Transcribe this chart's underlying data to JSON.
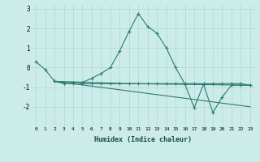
{
  "xlabel": "Humidex (Indice chaleur)",
  "bg_color": "#ccecea",
  "line_color": "#2a7d6e",
  "grid_color": "#b0d8d4",
  "xlim": [
    -0.5,
    23.5
  ],
  "ylim": [
    -3,
    3.2
  ],
  "yticks": [
    -2,
    -1,
    0,
    1,
    2,
    3
  ],
  "xticks": [
    0,
    1,
    2,
    3,
    4,
    5,
    6,
    7,
    8,
    9,
    10,
    11,
    12,
    13,
    14,
    15,
    16,
    17,
    18,
    19,
    20,
    21,
    22,
    23
  ],
  "lines": [
    {
      "x": [
        0,
        1,
        2,
        3,
        4,
        5,
        6,
        7,
        8,
        9,
        10,
        11,
        12,
        13,
        14,
        15,
        16,
        17,
        18,
        19,
        20,
        21,
        22,
        23
      ],
      "y": [
        0.3,
        -0.1,
        -0.7,
        -0.8,
        -0.75,
        -0.75,
        -0.55,
        -0.3,
        0.0,
        0.85,
        1.85,
        2.75,
        2.1,
        1.75,
        1.0,
        0.0,
        -0.85,
        -2.05,
        -0.85,
        -2.3,
        -1.5,
        -0.9,
        -0.9,
        -0.9
      ],
      "marker": true
    },
    {
      "x": [
        2,
        3,
        4,
        5,
        6,
        7,
        8,
        9,
        10,
        11,
        12,
        13,
        14,
        15,
        16,
        17,
        18,
        19,
        20,
        21,
        22,
        23
      ],
      "y": [
        -0.7,
        -0.8,
        -0.82,
        -0.82,
        -0.82,
        -0.82,
        -0.82,
        -0.82,
        -0.82,
        -0.82,
        -0.82,
        -0.82,
        -0.82,
        -0.82,
        -0.82,
        -0.82,
        -0.82,
        -0.82,
        -0.82,
        -0.82,
        -0.82,
        -0.9
      ],
      "marker": true
    },
    {
      "x": [
        2,
        23
      ],
      "y": [
        -0.7,
        -2.0
      ],
      "marker": false
    },
    {
      "x": [
        2,
        10,
        23
      ],
      "y": [
        -0.7,
        -0.82,
        -0.9
      ],
      "marker": false
    }
  ]
}
